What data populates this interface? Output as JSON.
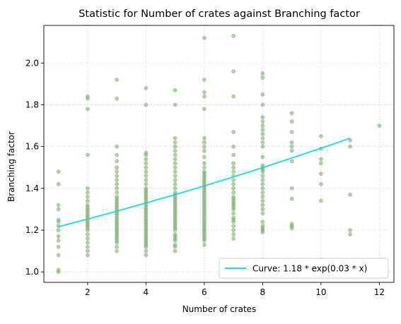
{
  "chart_data": {
    "type": "scatter",
    "title": "Statistic for Number of crates against Branching factor",
    "xlabel": "Number of crates",
    "ylabel": "Branching factor",
    "xlim": [
      0.5,
      12.5
    ],
    "ylim": [
      0.95,
      2.18
    ],
    "x_ticks": [
      2,
      4,
      6,
      8,
      10,
      12
    ],
    "y_ticks": [
      1.0,
      1.2,
      1.4,
      1.6,
      1.8,
      2.0
    ],
    "grid": true,
    "legend_position": "bottom-right",
    "colors": {
      "points": "#77aa66",
      "curve": "#1ad9e0"
    },
    "series": [
      {
        "kind": "points",
        "points": [
          [
            1,
            1.0
          ],
          [
            1,
            1.01
          ],
          [
            1,
            1.08
          ],
          [
            1,
            1.12
          ],
          [
            1,
            1.15
          ],
          [
            1,
            1.17
          ],
          [
            1,
            1.2
          ],
          [
            1,
            1.22
          ],
          [
            1,
            1.24
          ],
          [
            1,
            1.25
          ],
          [
            1,
            1.3
          ],
          [
            1,
            1.32
          ],
          [
            1,
            1.42
          ],
          [
            1,
            1.48
          ],
          [
            2,
            1.08
          ],
          [
            2,
            1.1
          ],
          [
            2,
            1.12
          ],
          [
            2,
            1.14
          ],
          [
            2,
            1.16
          ],
          [
            2,
            1.18
          ],
          [
            2,
            1.2
          ],
          [
            2,
            1.21
          ],
          [
            2,
            1.22
          ],
          [
            2,
            1.23
          ],
          [
            2,
            1.24
          ],
          [
            2,
            1.25
          ],
          [
            2,
            1.26
          ],
          [
            2,
            1.27
          ],
          [
            2,
            1.28
          ],
          [
            2,
            1.29
          ],
          [
            2,
            1.3
          ],
          [
            2,
            1.31
          ],
          [
            2,
            1.32
          ],
          [
            2,
            1.34
          ],
          [
            2,
            1.36
          ],
          [
            2,
            1.38
          ],
          [
            2,
            1.4
          ],
          [
            2,
            1.56
          ],
          [
            2,
            1.78
          ],
          [
            2,
            1.83
          ],
          [
            2,
            1.84
          ],
          [
            3,
            1.1
          ],
          [
            3,
            1.12
          ],
          [
            3,
            1.14
          ],
          [
            3,
            1.15
          ],
          [
            3,
            1.16
          ],
          [
            3,
            1.17
          ],
          [
            3,
            1.18
          ],
          [
            3,
            1.19
          ],
          [
            3,
            1.2
          ],
          [
            3,
            1.21
          ],
          [
            3,
            1.22
          ],
          [
            3,
            1.23
          ],
          [
            3,
            1.24
          ],
          [
            3,
            1.25
          ],
          [
            3,
            1.26
          ],
          [
            3,
            1.27
          ],
          [
            3,
            1.28
          ],
          [
            3,
            1.29
          ],
          [
            3,
            1.3
          ],
          [
            3,
            1.31
          ],
          [
            3,
            1.32
          ],
          [
            3,
            1.33
          ],
          [
            3,
            1.34
          ],
          [
            3,
            1.35
          ],
          [
            3,
            1.36
          ],
          [
            3,
            1.38
          ],
          [
            3,
            1.4
          ],
          [
            3,
            1.42
          ],
          [
            3,
            1.44
          ],
          [
            3,
            1.46
          ],
          [
            3,
            1.48
          ],
          [
            3,
            1.5
          ],
          [
            3,
            1.53
          ],
          [
            3,
            1.56
          ],
          [
            3,
            1.6
          ],
          [
            3,
            1.83
          ],
          [
            3,
            1.92
          ],
          [
            4,
            1.08
          ],
          [
            4,
            1.1
          ],
          [
            4,
            1.12
          ],
          [
            4,
            1.13
          ],
          [
            4,
            1.14
          ],
          [
            4,
            1.15
          ],
          [
            4,
            1.16
          ],
          [
            4,
            1.17
          ],
          [
            4,
            1.18
          ],
          [
            4,
            1.19
          ],
          [
            4,
            1.2
          ],
          [
            4,
            1.21
          ],
          [
            4,
            1.22
          ],
          [
            4,
            1.23
          ],
          [
            4,
            1.24
          ],
          [
            4,
            1.25
          ],
          [
            4,
            1.26
          ],
          [
            4,
            1.27
          ],
          [
            4,
            1.28
          ],
          [
            4,
            1.29
          ],
          [
            4,
            1.3
          ],
          [
            4,
            1.31
          ],
          [
            4,
            1.32
          ],
          [
            4,
            1.33
          ],
          [
            4,
            1.34
          ],
          [
            4,
            1.35
          ],
          [
            4,
            1.36
          ],
          [
            4,
            1.37
          ],
          [
            4,
            1.38
          ],
          [
            4,
            1.39
          ],
          [
            4,
            1.4
          ],
          [
            4,
            1.42
          ],
          [
            4,
            1.44
          ],
          [
            4,
            1.46
          ],
          [
            4,
            1.48
          ],
          [
            4,
            1.5
          ],
          [
            4,
            1.52
          ],
          [
            4,
            1.54
          ],
          [
            4,
            1.56
          ],
          [
            4,
            1.57
          ],
          [
            4,
            1.8
          ],
          [
            4,
            1.88
          ],
          [
            5,
            1.1
          ],
          [
            5,
            1.12
          ],
          [
            5,
            1.13
          ],
          [
            5,
            1.15
          ],
          [
            5,
            1.16
          ],
          [
            5,
            1.17
          ],
          [
            5,
            1.18
          ],
          [
            5,
            1.2
          ],
          [
            5,
            1.21
          ],
          [
            5,
            1.22
          ],
          [
            5,
            1.23
          ],
          [
            5,
            1.24
          ],
          [
            5,
            1.25
          ],
          [
            5,
            1.26
          ],
          [
            5,
            1.27
          ],
          [
            5,
            1.28
          ],
          [
            5,
            1.29
          ],
          [
            5,
            1.3
          ],
          [
            5,
            1.31
          ],
          [
            5,
            1.32
          ],
          [
            5,
            1.33
          ],
          [
            5,
            1.34
          ],
          [
            5,
            1.35
          ],
          [
            5,
            1.36
          ],
          [
            5,
            1.37
          ],
          [
            5,
            1.38
          ],
          [
            5,
            1.4
          ],
          [
            5,
            1.42
          ],
          [
            5,
            1.44
          ],
          [
            5,
            1.46
          ],
          [
            5,
            1.48
          ],
          [
            5,
            1.5
          ],
          [
            5,
            1.52
          ],
          [
            5,
            1.54
          ],
          [
            5,
            1.56
          ],
          [
            5,
            1.58
          ],
          [
            5,
            1.6
          ],
          [
            5,
            1.62
          ],
          [
            5,
            1.64
          ],
          [
            5,
            1.8
          ],
          [
            5,
            1.87
          ],
          [
            6,
            1.13
          ],
          [
            6,
            1.15
          ],
          [
            6,
            1.16
          ],
          [
            6,
            1.17
          ],
          [
            6,
            1.18
          ],
          [
            6,
            1.19
          ],
          [
            6,
            1.2
          ],
          [
            6,
            1.21
          ],
          [
            6,
            1.22
          ],
          [
            6,
            1.23
          ],
          [
            6,
            1.24
          ],
          [
            6,
            1.25
          ],
          [
            6,
            1.26
          ],
          [
            6,
            1.27
          ],
          [
            6,
            1.28
          ],
          [
            6,
            1.29
          ],
          [
            6,
            1.3
          ],
          [
            6,
            1.31
          ],
          [
            6,
            1.32
          ],
          [
            6,
            1.33
          ],
          [
            6,
            1.34
          ],
          [
            6,
            1.35
          ],
          [
            6,
            1.36
          ],
          [
            6,
            1.37
          ],
          [
            6,
            1.38
          ],
          [
            6,
            1.39
          ],
          [
            6,
            1.4
          ],
          [
            6,
            1.41
          ],
          [
            6,
            1.42
          ],
          [
            6,
            1.43
          ],
          [
            6,
            1.44
          ],
          [
            6,
            1.45
          ],
          [
            6,
            1.46
          ],
          [
            6,
            1.47
          ],
          [
            6,
            1.48
          ],
          [
            6,
            1.5
          ],
          [
            6,
            1.52
          ],
          [
            6,
            1.55
          ],
          [
            6,
            1.58
          ],
          [
            6,
            1.6
          ],
          [
            6,
            1.62
          ],
          [
            6,
            1.64
          ],
          [
            6,
            1.78
          ],
          [
            6,
            1.84
          ],
          [
            6,
            1.86
          ],
          [
            6,
            1.92
          ],
          [
            6,
            2.12
          ],
          [
            7,
            1.16
          ],
          [
            7,
            1.18
          ],
          [
            7,
            1.2
          ],
          [
            7,
            1.22
          ],
          [
            7,
            1.24
          ],
          [
            7,
            1.25
          ],
          [
            7,
            1.26
          ],
          [
            7,
            1.28
          ],
          [
            7,
            1.3
          ],
          [
            7,
            1.31
          ],
          [
            7,
            1.32
          ],
          [
            7,
            1.33
          ],
          [
            7,
            1.34
          ],
          [
            7,
            1.35
          ],
          [
            7,
            1.36
          ],
          [
            7,
            1.38
          ],
          [
            7,
            1.4
          ],
          [
            7,
            1.42
          ],
          [
            7,
            1.44
          ],
          [
            7,
            1.46
          ],
          [
            7,
            1.48
          ],
          [
            7,
            1.5
          ],
          [
            7,
            1.52
          ],
          [
            7,
            1.56
          ],
          [
            7,
            1.6
          ],
          [
            7,
            1.67
          ],
          [
            7,
            1.84
          ],
          [
            7,
            1.96
          ],
          [
            7,
            2.13
          ],
          [
            8,
            1.19
          ],
          [
            8,
            1.2
          ],
          [
            8,
            1.21
          ],
          [
            8,
            1.22
          ],
          [
            8,
            1.24
          ],
          [
            8,
            1.28
          ],
          [
            8,
            1.3
          ],
          [
            8,
            1.32
          ],
          [
            8,
            1.34
          ],
          [
            8,
            1.36
          ],
          [
            8,
            1.38
          ],
          [
            8,
            1.4
          ],
          [
            8,
            1.42
          ],
          [
            8,
            1.44
          ],
          [
            8,
            1.46
          ],
          [
            8,
            1.48
          ],
          [
            8,
            1.49
          ],
          [
            8,
            1.5
          ],
          [
            8,
            1.51
          ],
          [
            8,
            1.55
          ],
          [
            8,
            1.6
          ],
          [
            8,
            1.62
          ],
          [
            8,
            1.64
          ],
          [
            8,
            1.66
          ],
          [
            8,
            1.68
          ],
          [
            8,
            1.7
          ],
          [
            8,
            1.72
          ],
          [
            8,
            1.74
          ],
          [
            8,
            1.8
          ],
          [
            8,
            1.85
          ],
          [
            8,
            1.93
          ],
          [
            8,
            1.95
          ],
          [
            9,
            1.21
          ],
          [
            9,
            1.22
          ],
          [
            9,
            1.23
          ],
          [
            9,
            1.35
          ],
          [
            9,
            1.4
          ],
          [
            9,
            1.53
          ],
          [
            9,
            1.58
          ],
          [
            9,
            1.6
          ],
          [
            9,
            1.62
          ],
          [
            9,
            1.67
          ],
          [
            9,
            1.72
          ],
          [
            9,
            1.76
          ],
          [
            10,
            1.34
          ],
          [
            10,
            1.42
          ],
          [
            10,
            1.47
          ],
          [
            10,
            1.52
          ],
          [
            10,
            1.54
          ],
          [
            10,
            1.59
          ],
          [
            10,
            1.65
          ],
          [
            11,
            1.18
          ],
          [
            11,
            1.2
          ],
          [
            11,
            1.37
          ],
          [
            11,
            1.6
          ],
          [
            11,
            1.63
          ],
          [
            12,
            1.7
          ]
        ]
      },
      {
        "kind": "curve",
        "name": "Curve: 1.18 * exp(0.03 * x)",
        "points": [
          [
            1,
            1.216
          ],
          [
            2,
            1.253
          ],
          [
            3,
            1.291
          ],
          [
            4,
            1.33
          ],
          [
            5,
            1.37
          ],
          [
            6,
            1.412
          ],
          [
            7,
            1.455
          ],
          [
            8,
            1.499
          ],
          [
            9,
            1.545
          ],
          [
            10,
            1.592
          ],
          [
            11,
            1.64
          ]
        ]
      }
    ]
  }
}
